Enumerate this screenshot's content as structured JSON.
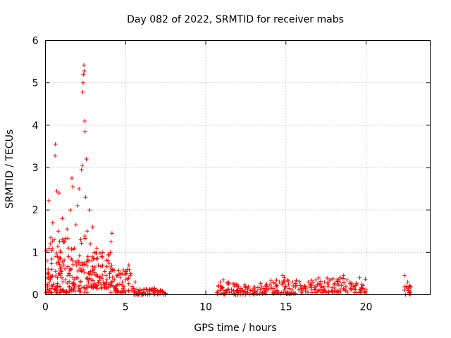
{
  "chart_data": {
    "type": "scatter",
    "title": "Day 082 of 2022, SRMTID for receiver mabs",
    "xlabel": "GPS time / hours",
    "ylabel": "SRMTID / TECUs",
    "xlim": [
      0,
      24
    ],
    "ylim": [
      0,
      6
    ],
    "xticks": [
      0,
      5,
      10,
      15,
      20
    ],
    "yticks": [
      0,
      1,
      2,
      3,
      4,
      5,
      6
    ],
    "xtick_labels": [
      "0",
      "5",
      "10",
      "15",
      "20"
    ],
    "ytick_labels": [
      "0",
      "1",
      "2",
      "3",
      "4",
      "5",
      "6"
    ],
    "grid": true,
    "marker": "plus",
    "color": "#ff0000",
    "series": [
      {
        "name": "SRMTID",
        "points": [
          [
            0.05,
            1.05
          ],
          [
            0.1,
            0.8
          ],
          [
            0.15,
            0.5
          ],
          [
            0.2,
            2.22
          ],
          [
            0.25,
            0.3
          ],
          [
            0.3,
            1.2
          ],
          [
            0.35,
            0.15
          ],
          [
            0.4,
            0.6
          ],
          [
            0.45,
            1.7
          ],
          [
            0.5,
            0.25
          ],
          [
            0.55,
            1.3
          ],
          [
            0.6,
            3.28
          ],
          [
            0.62,
            3.55
          ],
          [
            0.65,
            0.9
          ],
          [
            0.7,
            2.45
          ],
          [
            0.75,
            0.4
          ],
          [
            0.8,
            1.5
          ],
          [
            0.85,
            2.4
          ],
          [
            0.9,
            0.2
          ],
          [
            0.95,
            1.0
          ],
          [
            1.0,
            0.55
          ],
          [
            1.05,
            1.8
          ],
          [
            1.1,
            0.12
          ],
          [
            1.15,
            0.7
          ],
          [
            1.2,
            1.25
          ],
          [
            1.25,
            0.35
          ],
          [
            1.3,
            0.05
          ],
          [
            1.35,
            1.55
          ],
          [
            1.4,
            0.45
          ],
          [
            1.45,
            0.9
          ],
          [
            1.5,
            0.18
          ],
          [
            1.55,
            2.0
          ],
          [
            1.6,
            0.6
          ],
          [
            1.65,
            2.75
          ],
          [
            1.7,
            2.55
          ],
          [
            1.75,
            0.28
          ],
          [
            1.8,
            1.1
          ],
          [
            1.85,
            0.08
          ],
          [
            1.9,
            1.65
          ],
          [
            1.95,
            0.4
          ],
          [
            2.0,
            2.1
          ],
          [
            2.05,
            0.75
          ],
          [
            2.1,
            2.5
          ],
          [
            2.15,
            0.15
          ],
          [
            2.2,
            1.3
          ],
          [
            2.25,
            2.95
          ],
          [
            2.3,
            3.05
          ],
          [
            2.32,
            4.78
          ],
          [
            2.35,
            5.0
          ],
          [
            2.37,
            5.2
          ],
          [
            2.4,
            5.42
          ],
          [
            2.42,
            5.28
          ],
          [
            2.45,
            4.1
          ],
          [
            2.47,
            3.85
          ],
          [
            2.5,
            2.3
          ],
          [
            2.55,
            3.2
          ],
          [
            2.6,
            1.5
          ],
          [
            2.65,
            0.9
          ],
          [
            2.7,
            0.5
          ],
          [
            2.75,
            2.0
          ],
          [
            2.8,
            1.2
          ],
          [
            2.85,
            0.35
          ],
          [
            2.9,
            0.8
          ],
          [
            2.95,
            1.6
          ],
          [
            3.0,
            0.6
          ],
          [
            3.05,
            1.0
          ],
          [
            3.1,
            0.25
          ],
          [
            3.15,
            0.45
          ],
          [
            3.2,
            1.1
          ],
          [
            3.3,
            0.7
          ],
          [
            3.4,
            0.4
          ],
          [
            3.5,
            0.9
          ],
          [
            3.6,
            0.3
          ],
          [
            3.7,
            0.55
          ],
          [
            3.8,
            0.2
          ],
          [
            3.9,
            0.8
          ],
          [
            4.0,
            0.5
          ],
          [
            4.05,
            1.0
          ],
          [
            4.1,
            1.25
          ],
          [
            4.15,
            1.45
          ],
          [
            4.2,
            0.6
          ],
          [
            4.3,
            0.35
          ],
          [
            4.4,
            0.15
          ],
          [
            4.5,
            0.45
          ],
          [
            4.6,
            0.25
          ],
          [
            4.7,
            0.5
          ],
          [
            4.8,
            0.3
          ],
          [
            4.9,
            0.2
          ],
          [
            5.0,
            0.35
          ],
          [
            5.1,
            0.6
          ],
          [
            5.2,
            0.7
          ],
          [
            5.3,
            0.45
          ],
          [
            5.4,
            0.2
          ],
          [
            5.5,
            0.15
          ],
          [
            5.6,
            0.3
          ],
          [
            5.7,
            0.12
          ],
          [
            5.8,
            0.08
          ],
          [
            5.9,
            0.1
          ],
          [
            6.0,
            0.05
          ],
          [
            6.2,
            0.12
          ],
          [
            6.4,
            0.08
          ],
          [
            6.6,
            0.1
          ],
          [
            6.8,
            0.06
          ],
          [
            7.0,
            0.09
          ],
          [
            7.2,
            0.07
          ],
          [
            7.4,
            0.05
          ],
          [
            7.5,
            0.03
          ],
          [
            10.7,
            0.05
          ],
          [
            10.8,
            0.2
          ],
          [
            10.9,
            0.3
          ],
          [
            11.0,
            0.15
          ],
          [
            11.1,
            0.35
          ],
          [
            11.2,
            0.1
          ],
          [
            11.4,
            0.25
          ],
          [
            11.6,
            0.12
          ],
          [
            11.8,
            0.2
          ],
          [
            12.0,
            0.1
          ],
          [
            12.2,
            0.15
          ],
          [
            12.4,
            0.08
          ],
          [
            12.6,
            0.12
          ],
          [
            12.8,
            0.1
          ],
          [
            13.0,
            0.14
          ],
          [
            13.2,
            0.09
          ],
          [
            13.4,
            0.12
          ],
          [
            13.6,
            0.15
          ],
          [
            13.8,
            0.2
          ],
          [
            14.0,
            0.25
          ],
          [
            14.2,
            0.15
          ],
          [
            14.4,
            0.2
          ],
          [
            14.6,
            0.3
          ],
          [
            14.8,
            0.45
          ],
          [
            14.9,
            0.4
          ],
          [
            15.0,
            0.2
          ],
          [
            15.2,
            0.15
          ],
          [
            15.4,
            0.3
          ],
          [
            15.6,
            0.18
          ],
          [
            15.8,
            0.12
          ],
          [
            16.0,
            0.15
          ],
          [
            16.2,
            0.2
          ],
          [
            16.4,
            0.3
          ],
          [
            16.6,
            0.22
          ],
          [
            16.8,
            0.18
          ],
          [
            17.0,
            0.25
          ],
          [
            17.2,
            0.2
          ],
          [
            17.4,
            0.3
          ],
          [
            17.6,
            0.28
          ],
          [
            17.8,
            0.35
          ],
          [
            18.0,
            0.25
          ],
          [
            18.2,
            0.3
          ],
          [
            18.4,
            0.4
          ],
          [
            18.6,
            0.45
          ],
          [
            18.8,
            0.35
          ],
          [
            19.0,
            0.3
          ],
          [
            19.2,
            0.2
          ],
          [
            19.4,
            0.25
          ],
          [
            19.6,
            0.4
          ],
          [
            19.8,
            0.15
          ],
          [
            20.0,
            0.08
          ],
          [
            22.4,
            0.45
          ],
          [
            22.5,
            0.2
          ],
          [
            22.6,
            0.3
          ],
          [
            22.65,
            0.1
          ],
          [
            22.7,
            0.05
          ]
        ],
        "bands": [
          {
            "x": [
              0.0,
              2.6
            ],
            "y": [
              0.05,
              1.4
            ],
            "n": 150
          },
          {
            "x": [
              2.5,
              4.2
            ],
            "y": [
              0.15,
              1.0
            ],
            "n": 80
          },
          {
            "x": [
              4.0,
              5.5
            ],
            "y": [
              0.05,
              0.6
            ],
            "n": 50
          },
          {
            "x": [
              5.5,
              7.5
            ],
            "y": [
              0.0,
              0.15
            ],
            "n": 55
          },
          {
            "x": [
              10.7,
              13.0
            ],
            "y": [
              0.0,
              0.3
            ],
            "n": 60
          },
          {
            "x": [
              13.0,
              16.0
            ],
            "y": [
              0.02,
              0.35
            ],
            "n": 75
          },
          {
            "x": [
              16.0,
              20.0
            ],
            "y": [
              0.05,
              0.4
            ],
            "n": 100
          },
          {
            "x": [
              22.3,
              22.8
            ],
            "y": [
              0.0,
              0.3
            ],
            "n": 12
          }
        ]
      }
    ]
  }
}
